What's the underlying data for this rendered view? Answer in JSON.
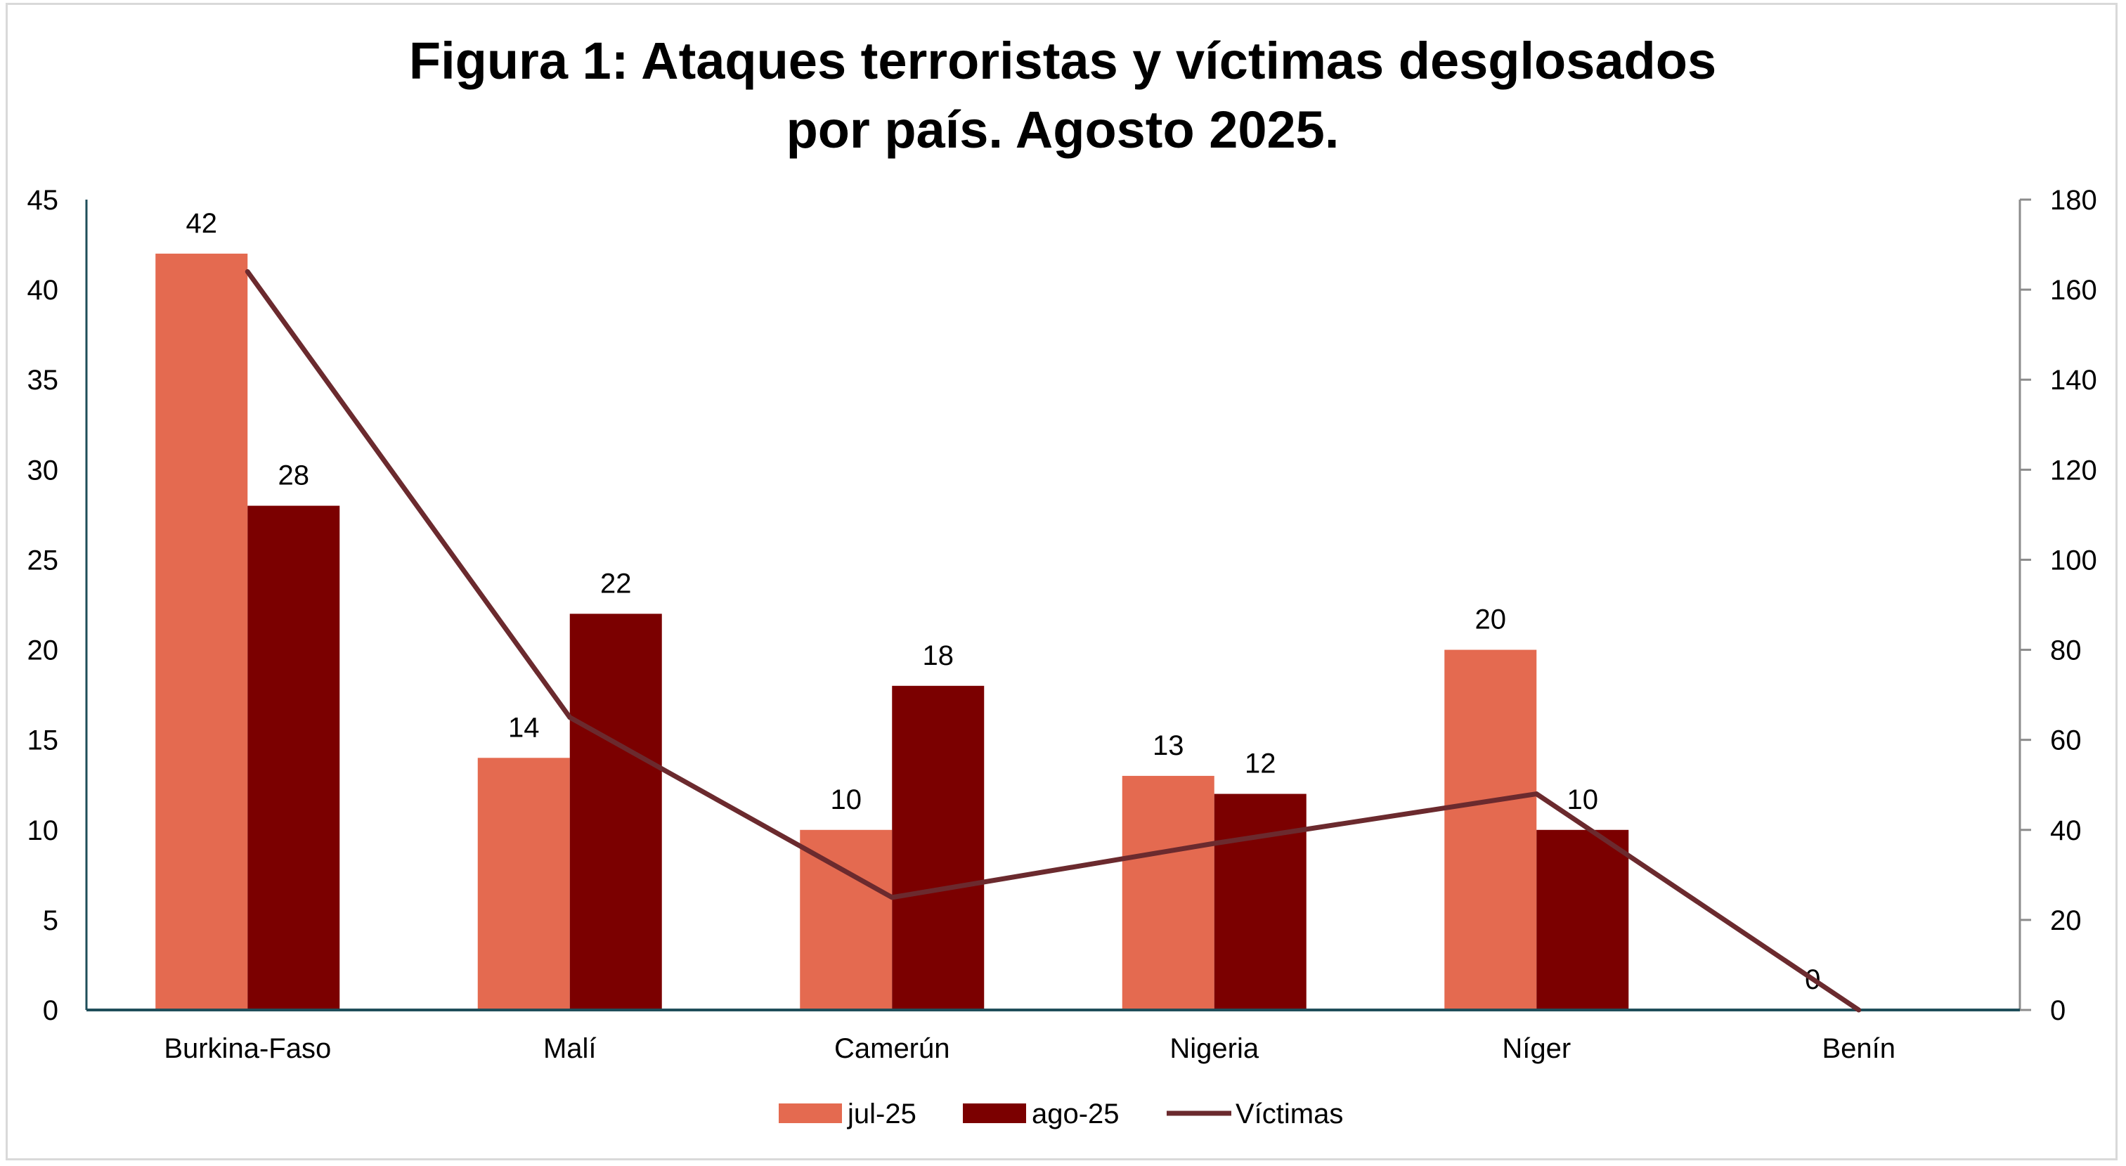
{
  "chart_data": {
    "type": "bar",
    "title_lines": [
      "Figura 1: Ataques terroristas y víctimas desglosados",
      "por país. Agosto 2025."
    ],
    "categories": [
      "Burkina-Faso",
      "Malí",
      "Camerún",
      "Nigeria",
      "Níger",
      "Benín"
    ],
    "series": [
      {
        "name": "jul-25",
        "type": "bar",
        "axis": "left",
        "color": "#E46A50",
        "values": [
          42,
          14,
          10,
          13,
          20,
          0
        ]
      },
      {
        "name": "ago-25",
        "type": "bar",
        "axis": "left",
        "color": "#7B0000",
        "values": [
          28,
          22,
          18,
          12,
          10,
          null
        ]
      },
      {
        "name": "Víctimas",
        "type": "line",
        "axis": "right",
        "color": "#6B2A2E",
        "values": [
          164,
          65,
          25,
          37,
          48,
          0
        ]
      }
    ],
    "y_left": {
      "min": 0,
      "max": 45,
      "ticks": [
        "0",
        "5",
        "10",
        "15",
        "20",
        "25",
        "30",
        "35",
        "40",
        "45"
      ]
    },
    "y_right": {
      "min": 0,
      "max": 180,
      "ticks": [
        "0",
        "20",
        "40",
        "60",
        "80",
        "100",
        "120",
        "140",
        "160",
        "180"
      ]
    },
    "legend_position": "bottom",
    "grid": false
  }
}
